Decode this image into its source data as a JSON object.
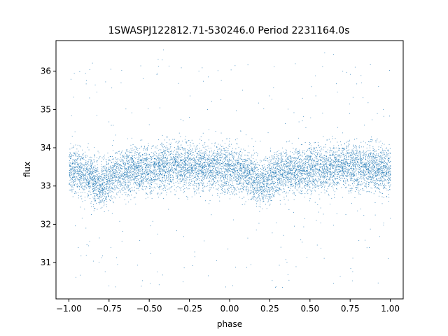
{
  "chart_data": {
    "type": "scatter",
    "title": "1SWASPJ122812.71-530246.0 Period 2231164.0s",
    "xlabel": "phase",
    "ylabel": "flux",
    "xlim": [
      -1.08,
      1.08
    ],
    "ylim": [
      30.05,
      36.8
    ],
    "x_ticks": [
      -1.0,
      -0.75,
      -0.5,
      -0.25,
      0.0,
      0.25,
      0.5,
      0.75,
      1.0
    ],
    "x_tick_labels": [
      "−1.00",
      "−0.75",
      "−0.50",
      "−0.25",
      "0.00",
      "0.25",
      "0.50",
      "0.75",
      "1.00"
    ],
    "y_ticks": [
      31,
      32,
      33,
      34,
      35,
      36
    ],
    "y_tick_labels": [
      "31",
      "32",
      "33",
      "34",
      "35",
      "36"
    ],
    "grid": false,
    "point_color": "#1f77b4",
    "series": [
      {
        "x_range": [
          -1.0,
          1.0
        ],
        "profile": {
          "phase": [
            0.0,
            0.1,
            0.2,
            0.3,
            0.4,
            0.5,
            0.6,
            0.7,
            0.8,
            0.9,
            1.0
          ],
          "median_flux": [
            33.45,
            33.35,
            33.05,
            33.35,
            33.4,
            33.45,
            33.5,
            33.55,
            33.5,
            33.5,
            33.45
          ]
        }
      }
    ]
  }
}
